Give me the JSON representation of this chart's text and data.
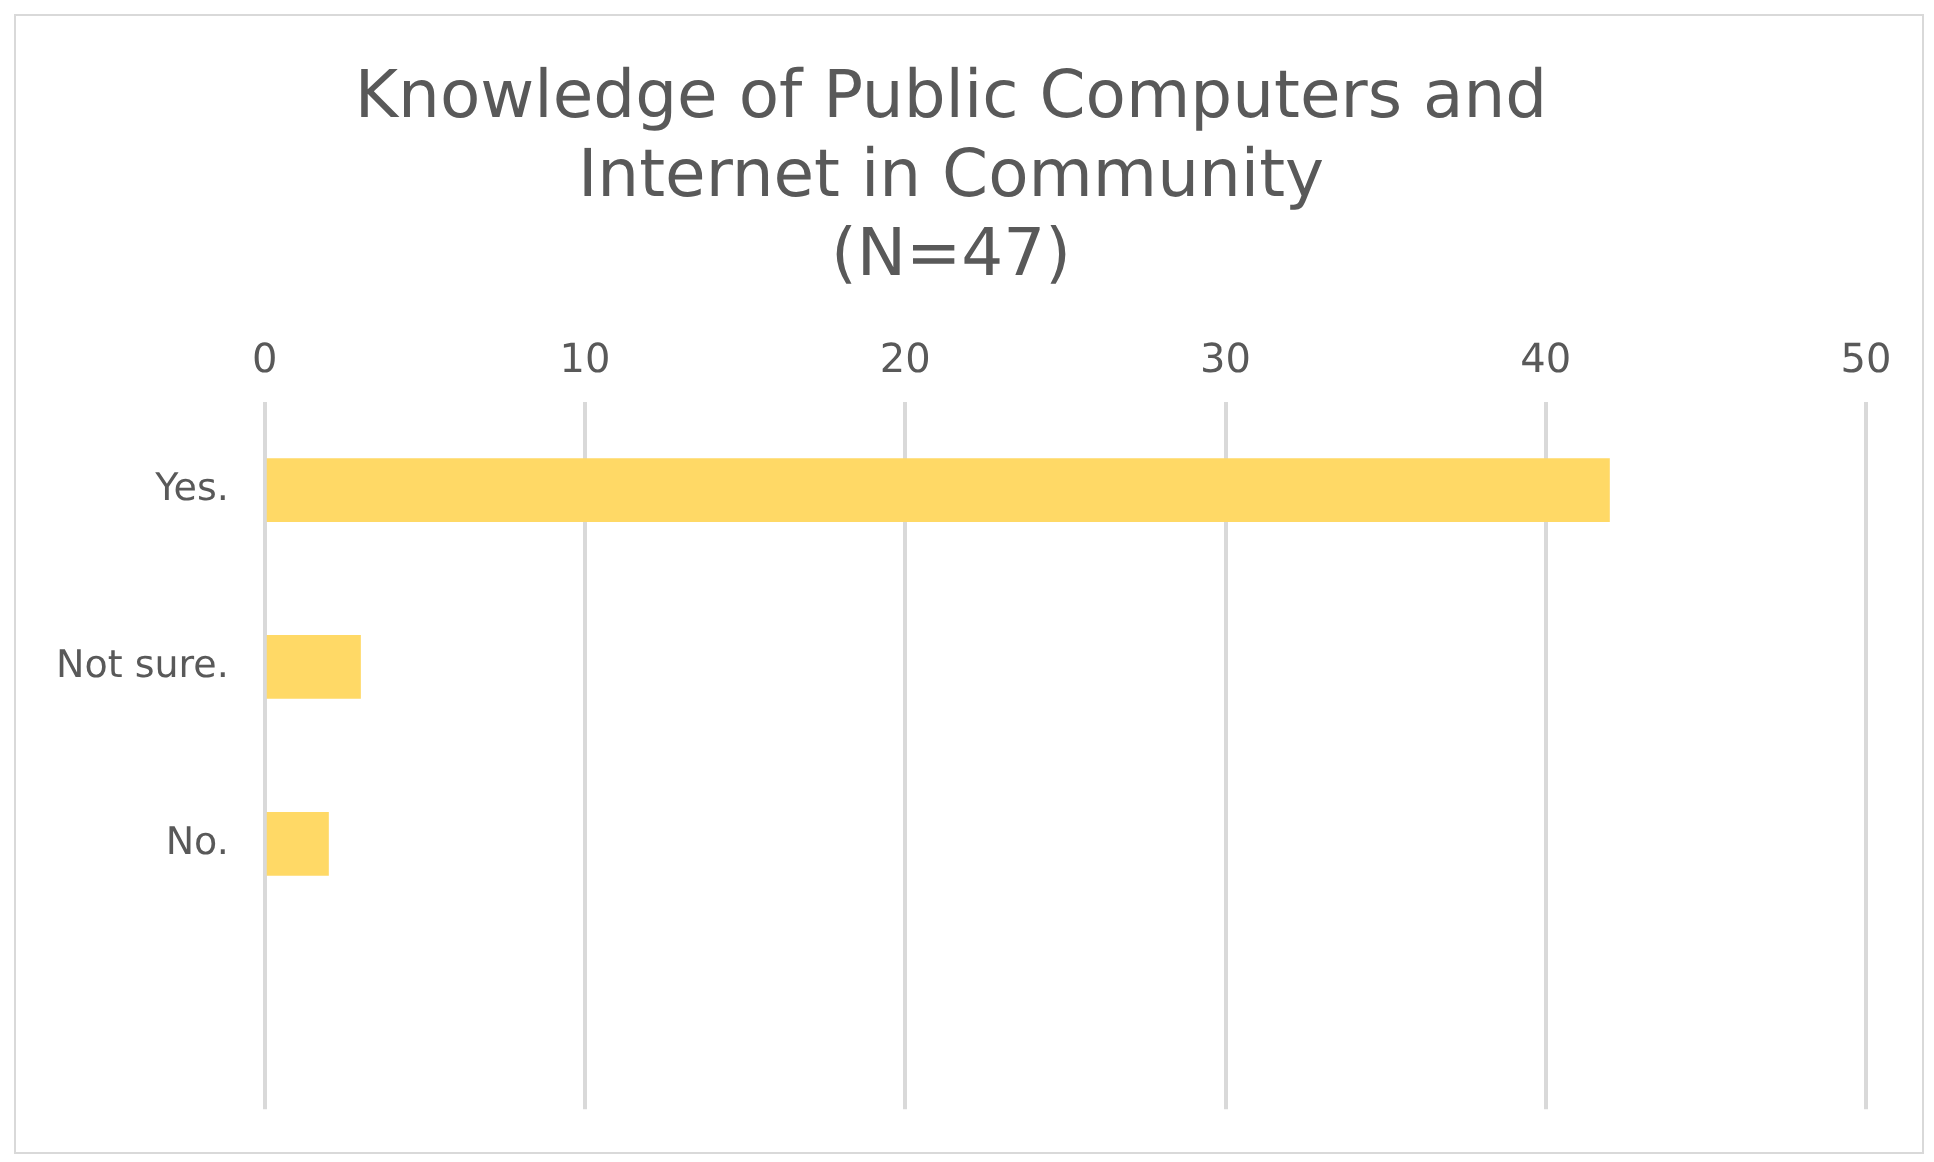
{
  "chart_data": {
    "type": "bar",
    "orientation": "horizontal",
    "title": "Knowledge of Public Computers and\nInternet in Community\n(N=47)",
    "categories": [
      "Yes.",
      "Not sure.",
      "No.",
      null
    ],
    "values": [
      42,
      3,
      2,
      null
    ],
    "color": "#ffd966",
    "xlim": [
      0,
      50
    ],
    "xticks": [
      0,
      10,
      20,
      30,
      40,
      50
    ],
    "grid": "x",
    "legend": false
  }
}
